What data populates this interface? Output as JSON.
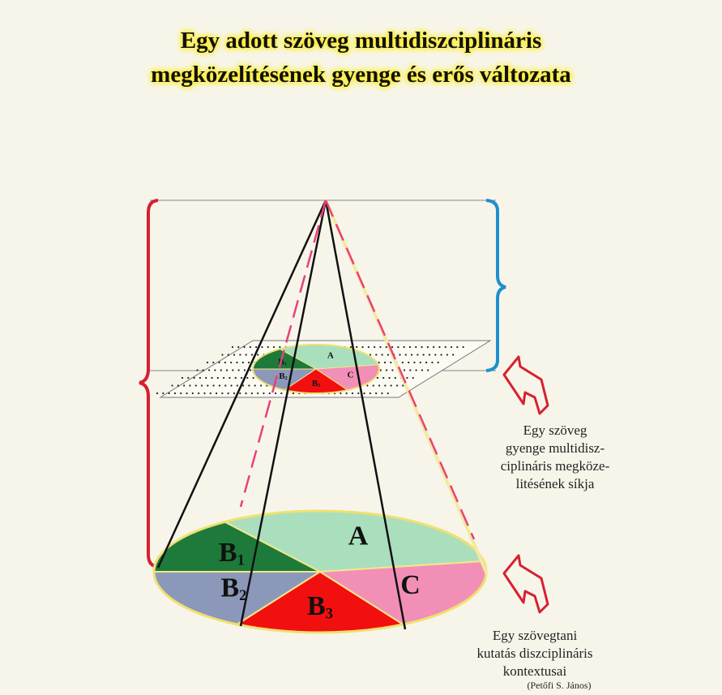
{
  "title": {
    "lines": [
      "Egy adott szöveg multidiszciplináris",
      "megközelítésének gyenge és erős változata"
    ]
  },
  "small_section": {
    "segments": [
      {
        "letter": "A"
      },
      {
        "letter": "B",
        "sub": "1"
      },
      {
        "letter": "B",
        "sub": "2"
      },
      {
        "letter": "B",
        "sub": "3"
      },
      {
        "letter": "C"
      }
    ]
  },
  "large_section": {
    "segments": [
      {
        "letter": "A"
      },
      {
        "letter": "B",
        "sub": "1"
      },
      {
        "letter": "B",
        "sub": "2"
      },
      {
        "letter": "B",
        "sub": "3"
      },
      {
        "letter": "C"
      }
    ]
  },
  "captions": {
    "weak": [
      "Egy szöveg",
      "gyenge multidisz-",
      "ciplináris megköze-",
      "litésének síkja"
    ],
    "context": [
      "Egy szövegtani",
      "kutatás diszciplináris",
      "kontextusai"
    ],
    "author": "(Petőfi S. János)"
  }
}
